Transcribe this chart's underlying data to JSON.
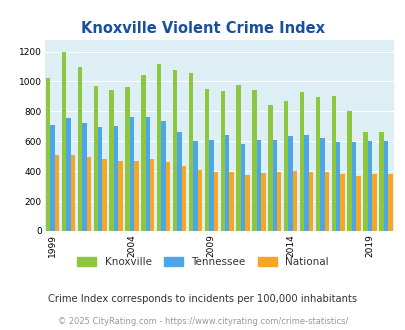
{
  "title": "Knoxville Violent Crime Index",
  "subtitle": "Crime Index corresponds to incidents per 100,000 inhabitants",
  "footer": "© 2025 CityRating.com - https://www.cityrating.com/crime-statistics/",
  "years": [
    1999,
    2000,
    2001,
    2002,
    2003,
    2004,
    2005,
    2006,
    2007,
    2008,
    2009,
    2010,
    2011,
    2012,
    2013,
    2014,
    2015,
    2016,
    2017,
    2018,
    2019,
    2020
  ],
  "knoxville": [
    1020,
    1200,
    1100,
    970,
    945,
    965,
    1040,
    1115,
    1080,
    1055,
    950,
    935,
    975,
    940,
    840,
    870,
    930,
    895,
    900,
    800,
    660,
    660
  ],
  "tennessee": [
    710,
    755,
    720,
    695,
    700,
    760,
    760,
    735,
    660,
    605,
    610,
    640,
    585,
    610,
    610,
    635,
    645,
    620,
    595,
    595,
    600,
    600
  ],
  "national": [
    510,
    505,
    495,
    480,
    465,
    465,
    480,
    460,
    435,
    405,
    395,
    395,
    375,
    385,
    395,
    400,
    395,
    395,
    380,
    370,
    380,
    380
  ],
  "color_knoxville": "#8dc63f",
  "color_tennessee": "#4da6e8",
  "color_national": "#f5a623",
  "bg_color": "#ddeef5",
  "ylim": [
    0,
    1280
  ],
  "yticks": [
    0,
    200,
    400,
    600,
    800,
    1000,
    1200
  ],
  "xtick_years": [
    1999,
    2004,
    2009,
    2014,
    2019
  ],
  "title_color": "#1a4fa0",
  "subtitle_color": "#333333",
  "footer_color": "#999999",
  "legend_label_color": "#333333"
}
